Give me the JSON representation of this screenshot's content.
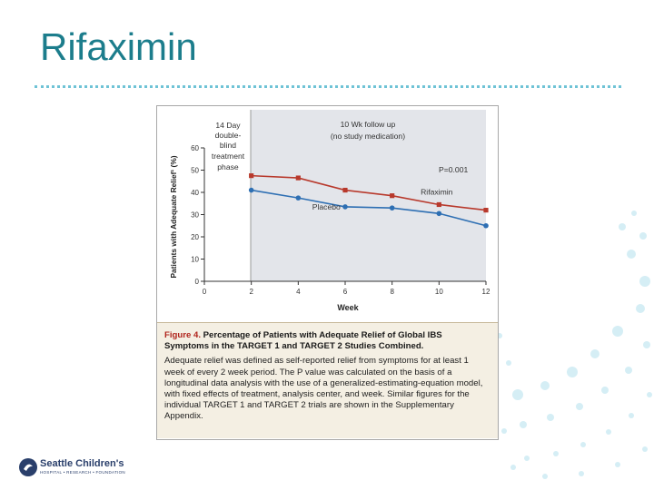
{
  "slide": {
    "title": "Rifaximin"
  },
  "figure": {
    "label": "Figure 4.",
    "caption_title": "Percentage of Patients with Adequate Relief of Global IBS Symptoms in the TARGET 1 and TARGET 2 Studies Combined.",
    "caption_body": "Adequate relief was defined as self-reported relief from symptoms for at least 1 week of every 2 week period. The P value was calculated on the basis of a longitudinal data analysis with the use of a generalized-estimating-equation model, with fixed effects of treatment, analysis center, and week. Similar figures for the individual TARGET 1 and TARGET 2 trials are shown in the Supplementary Appendix."
  },
  "chart_data": {
    "type": "line",
    "x": [
      2,
      4,
      6,
      8,
      10,
      12
    ],
    "series": [
      {
        "name": "Rifaximin",
        "values": [
          47.5,
          46.5,
          41,
          38.5,
          34.5,
          32
        ]
      },
      {
        "name": "Placebo",
        "values": [
          41,
          37.5,
          33.5,
          33,
          30.5,
          25
        ]
      }
    ],
    "xlabel": "Week",
    "ylabel": "Patients with Adequate Relief¹ (%)",
    "xlim": [
      0,
      12
    ],
    "ylim": [
      0,
      60
    ],
    "xticks": [
      "0",
      "2",
      "4",
      "6",
      "8",
      "10",
      "12"
    ],
    "yticks": [
      "0",
      "10",
      "20",
      "30",
      "40",
      "50",
      "60"
    ],
    "annotations": {
      "treatment_phase": [
        "14 Day",
        "double-",
        "blind",
        "treatment",
        "phase"
      ],
      "followup_line1": "10 Wk follow up",
      "followup_line2": "(no study medication)",
      "p_value": "P=0.001"
    },
    "colors": {
      "Rifaximin": "#b8392c",
      "Placebo": "#2e6fb3",
      "shade": "#e3e5ea"
    }
  },
  "logo": {
    "name": "Seattle Children's",
    "subtitle": "HOSPITAL • RESEARCH • FOUNDATION"
  }
}
